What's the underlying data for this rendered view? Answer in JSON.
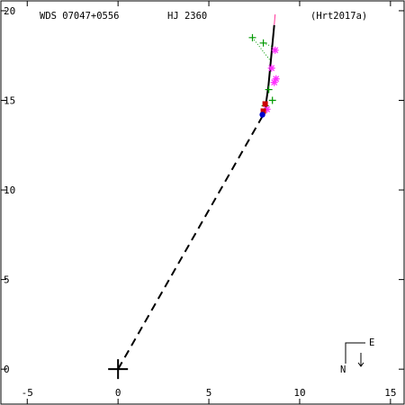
{
  "header": {
    "wds_id": "WDS 07047+0556",
    "discoverer": "HJ 2360",
    "reference": "(Hrt2017a)"
  },
  "compass": {
    "east_label": "E",
    "north_label": "N"
  },
  "chart_data": {
    "type": "scatter",
    "title": "",
    "xlabel": "",
    "ylabel": "",
    "xlim": [
      -6.5,
      15.8
    ],
    "ylim": [
      -2.0,
      20.6
    ],
    "x_ticks": [
      -5,
      0,
      5,
      10,
      15
    ],
    "y_ticks": [
      0,
      5,
      10,
      15,
      20
    ],
    "x_tick_labels": [
      "-5",
      "0",
      "5",
      "10",
      "15"
    ],
    "y_tick_labels": [
      "0",
      "5",
      "10",
      "15",
      "20"
    ],
    "primary": {
      "x": 0,
      "y": 0
    },
    "origin_line": {
      "x": [
        0,
        8.0
      ],
      "y": [
        0,
        14.2
      ]
    },
    "orbit_arc": {
      "x": [
        8.1,
        8.28,
        8.6
      ],
      "y": [
        14.5,
        15.8,
        19.2
      ]
    },
    "series": [
      {
        "marker": "plus",
        "color": "#009900",
        "points": [
          [
            7.4,
            18.5
          ],
          [
            8.0,
            18.2
          ],
          [
            8.3,
            15.6
          ],
          [
            8.5,
            15.0
          ],
          [
            8.1,
            14.7
          ]
        ]
      },
      {
        "marker": "star",
        "color": "#ff33ff",
        "points": [
          [
            8.65,
            17.8
          ],
          [
            8.45,
            16.8
          ],
          [
            8.7,
            16.2
          ],
          [
            8.6,
            16.0
          ],
          [
            8.2,
            14.5
          ]
        ]
      },
      {
        "marker": "square",
        "color": "#cc0000",
        "points": [
          [
            8.1,
            14.8
          ],
          [
            8.0,
            14.4
          ]
        ]
      },
      {
        "marker": "circle",
        "color": "#0000cc",
        "points": [
          [
            7.95,
            14.2
          ]
        ]
      }
    ],
    "residuals": [
      {
        "from": [
          7.4,
          18.5
        ],
        "to": [
          8.4,
          17.2
        ],
        "color": "#009900"
      },
      {
        "from": [
          8.0,
          18.2
        ],
        "to": [
          8.5,
          18.0
        ],
        "color": "#009900"
      },
      {
        "from": [
          8.65,
          17.8
        ],
        "to": [
          8.5,
          17.7
        ],
        "color": "#ff33ff"
      },
      {
        "from": [
          8.3,
          15.6
        ],
        "to": [
          8.2,
          15.6
        ],
        "color": "#009900"
      }
    ]
  }
}
